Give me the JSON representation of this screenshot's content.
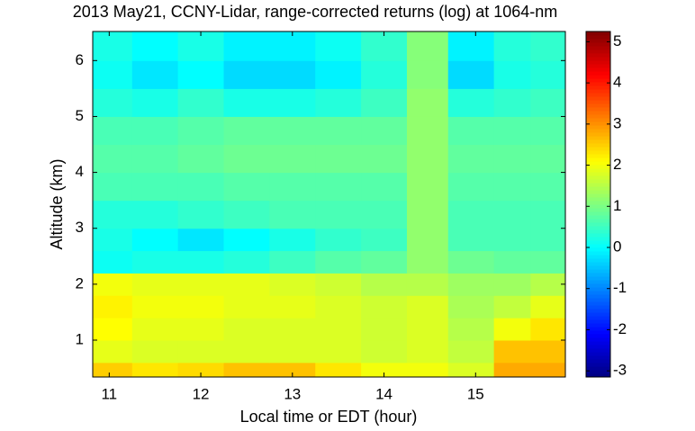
{
  "chart_data": {
    "type": "heatmap",
    "title": "2013 May21, CCNY-Lidar, range-corrected returns (log) at 1064-nm",
    "xlabel": "Local time or EDT (hour)",
    "ylabel": "Altitude (km)",
    "colormap": "jet",
    "xlim": [
      10.82,
      15.98
    ],
    "ylim": [
      0.34,
      6.52
    ],
    "xticks": [
      11,
      12,
      13,
      14,
      15
    ],
    "yticks": [
      1,
      2,
      3,
      4,
      5,
      6
    ],
    "clim": [
      -3.15,
      5.25
    ],
    "cticks": [
      -3,
      -2,
      -1,
      0,
      1,
      2,
      3,
      4,
      5
    ],
    "x_edges": [
      10.82,
      11.25,
      11.75,
      12.25,
      12.75,
      13.25,
      13.75,
      14.25,
      14.7,
      15.2,
      15.6,
      15.98
    ],
    "y_edges": [
      0.34,
      0.6,
      1.0,
      1.4,
      1.8,
      2.2,
      2.6,
      3.0,
      3.5,
      4.0,
      4.5,
      5.0,
      5.5,
      6.0,
      6.52
    ],
    "z": [
      [
        2.5,
        2.3,
        2.4,
        2.6,
        2.6,
        2.3,
        2.0,
        2.0,
        1.8,
        2.8,
        2.8
      ],
      [
        1.9,
        1.8,
        1.8,
        1.8,
        1.8,
        1.8,
        1.7,
        1.8,
        1.6,
        2.6,
        2.6
      ],
      [
        2.1,
        1.9,
        1.9,
        1.8,
        1.8,
        1.8,
        1.7,
        1.8,
        1.5,
        2.0,
        2.3
      ],
      [
        2.2,
        2.0,
        2.0,
        1.9,
        1.9,
        1.8,
        1.7,
        1.8,
        1.4,
        1.6,
        1.9
      ],
      [
        2.0,
        1.9,
        1.9,
        1.9,
        1.8,
        1.7,
        1.5,
        1.5,
        1.3,
        1.3,
        1.5
      ],
      [
        0.1,
        0.2,
        0.2,
        0.3,
        0.5,
        0.7,
        0.8,
        1.2,
        0.9,
        0.8,
        0.8
      ],
      [
        0.2,
        0.0,
        -0.2,
        0.0,
        0.2,
        0.4,
        0.5,
        1.2,
        0.6,
        0.6,
        0.6
      ],
      [
        0.3,
        0.3,
        0.4,
        0.5,
        0.6,
        0.6,
        0.6,
        1.2,
        0.6,
        0.6,
        0.6
      ],
      [
        0.6,
        0.6,
        0.6,
        0.7,
        0.7,
        0.7,
        0.7,
        1.2,
        0.7,
        0.7,
        0.7
      ],
      [
        0.7,
        0.7,
        0.8,
        0.9,
        0.9,
        0.9,
        0.9,
        1.2,
        0.8,
        0.8,
        0.8
      ],
      [
        0.6,
        0.6,
        0.7,
        0.8,
        0.8,
        0.8,
        0.8,
        1.2,
        0.7,
        0.7,
        0.7
      ],
      [
        0.3,
        0.2,
        0.4,
        0.2,
        0.2,
        0.3,
        0.5,
        1.2,
        0.3,
        0.4,
        0.5
      ],
      [
        0.1,
        -0.2,
        0.0,
        -0.3,
        -0.3,
        -0.1,
        0.3,
        1.1,
        -0.3,
        0.2,
        0.3
      ],
      [
        0.2,
        0.0,
        0.2,
        -0.1,
        -0.1,
        0.1,
        0.4,
        1.1,
        -0.1,
        0.3,
        0.4
      ]
    ]
  }
}
